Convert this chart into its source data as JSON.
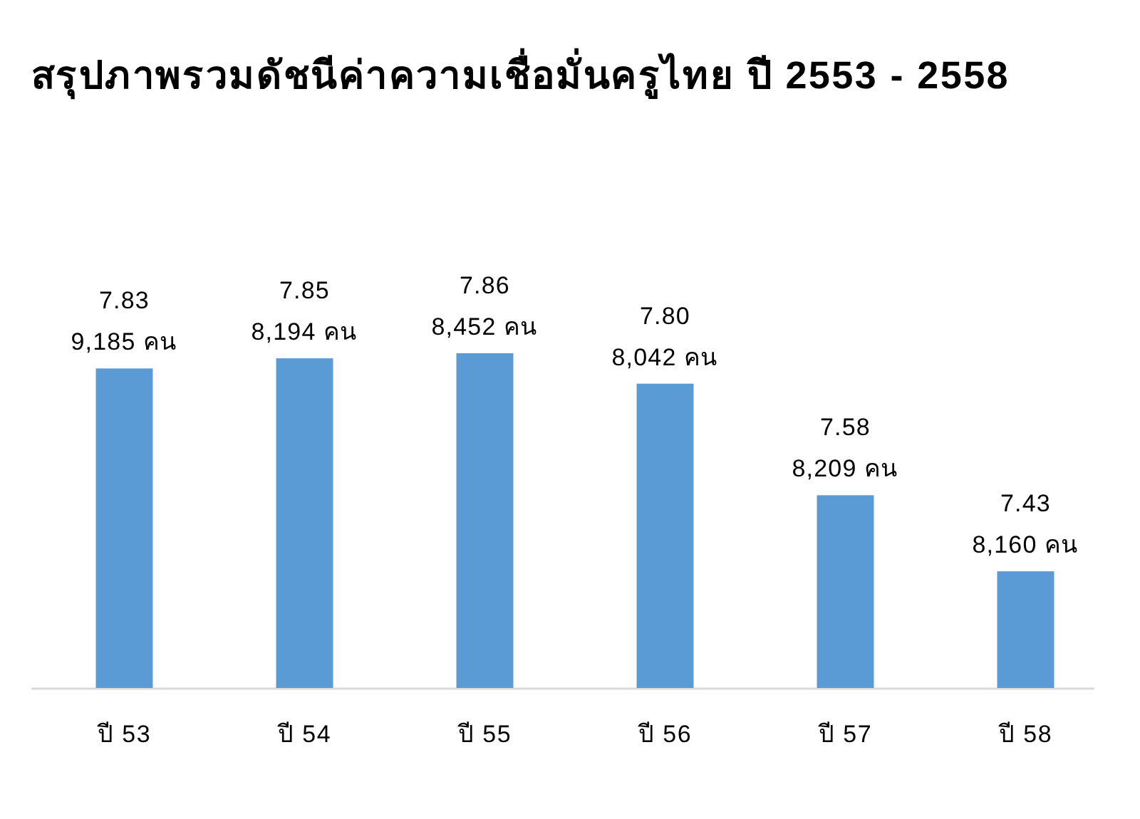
{
  "chart_data": {
    "type": "bar",
    "title": "สรุปภาพรวมดัชนีค่าความเชื่อมั่นครูไทย ปี 2553 - 2558",
    "categories": [
      "ปี 53",
      "ปี 54",
      "ปี 55",
      "ปี 56",
      "ปี 57",
      "ปี 58"
    ],
    "values": [
      7.83,
      7.85,
      7.86,
      7.8,
      7.58,
      7.43
    ],
    "value_labels": [
      "7.83",
      "7.85",
      "7.86",
      "7.80",
      "7.58",
      "7.43"
    ],
    "color": "#5b9bd5",
    "ylim": [
      7.2,
      7.86
    ],
    "annotations": [
      {
        "text": "9,185 คน",
        "x": "ปี 53",
        "y": 7.83
      },
      {
        "text": "8,194 คน",
        "x": "ปี 54",
        "y": 7.85
      },
      {
        "text": "8,452 คน",
        "x": "ปี 55",
        "y": 7.86
      },
      {
        "text": "8,042 คน",
        "x": "ปี 56",
        "y": 7.8
      },
      {
        "text": "8,209 คน",
        "x": "ปี 57",
        "y": 7.58
      },
      {
        "text": "8,160 คน",
        "x": "ปี 58",
        "y": 7.43
      }
    ]
  }
}
